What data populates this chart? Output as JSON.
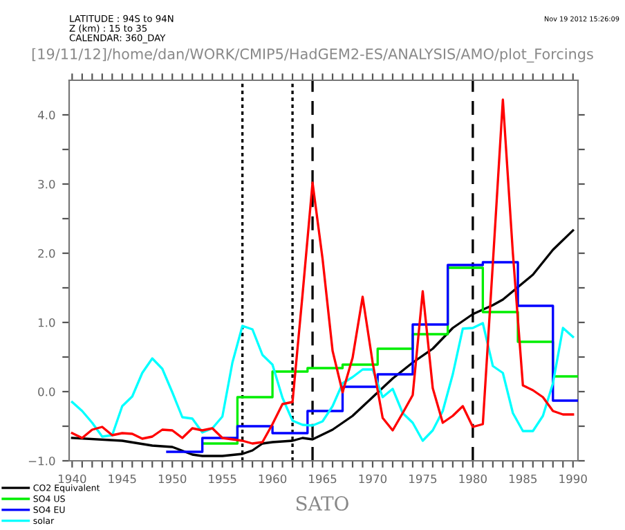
{
  "chart_data": {
    "type": "line",
    "title": "[19/11/12]/home/dan/WORK/CMIP5/HadGEM2-ES/ANALYSIS/AMO/plot_Forcings",
    "xlabel": "SATO",
    "annotations": [
      "LATITUDE : 94S to 94N",
      "Z (km) : 15 to 35",
      "CALENDAR: 360_DAY",
      "Nov 19 2012 15:26:09"
    ],
    "xlim": [
      1939.7,
      1990.5
    ],
    "ylim": [
      -1.0,
      4.5
    ],
    "xticks": [
      1940,
      {
        "value": 1941,
        "label": null
      },
      {
        "value": 1942,
        "label": null
      },
      {
        "value": 1943,
        "label": null
      },
      {
        "value": 1944,
        "label": null
      },
      1945,
      {
        "value": 1946,
        "label": null
      },
      {
        "value": 1947,
        "label": null
      },
      {
        "value": 1948,
        "label": null
      },
      {
        "value": 1949,
        "label": null
      },
      1950,
      {
        "value": 1951,
        "label": null
      },
      {
        "value": 1952,
        "label": null
      },
      {
        "value": 1953,
        "label": null
      },
      {
        "value": 1954,
        "label": null
      },
      1955,
      {
        "value": 1956,
        "label": null
      },
      {
        "value": 1957,
        "label": null
      },
      {
        "value": 1958,
        "label": null
      },
      {
        "value": 1959,
        "label": null
      },
      1960,
      {
        "value": 1961,
        "label": null
      },
      {
        "value": 1962,
        "label": null
      },
      {
        "value": 1963,
        "label": null
      },
      {
        "value": 1964,
        "label": null
      },
      1965,
      {
        "value": 1966,
        "label": null
      },
      {
        "value": 1967,
        "label": null
      },
      {
        "value": 1968,
        "label": null
      },
      {
        "value": 1969,
        "label": null
      },
      1970,
      {
        "value": 1971,
        "label": null
      },
      {
        "value": 1972,
        "label": null
      },
      {
        "value": 1973,
        "label": null
      },
      {
        "value": 1974,
        "label": null
      },
      1975,
      {
        "value": 1976,
        "label": null
      },
      {
        "value": 1977,
        "label": null
      },
      {
        "value": 1978,
        "label": null
      },
      {
        "value": 1979,
        "label": null
      },
      1980,
      {
        "value": 1981,
        "label": null
      },
      {
        "value": 1982,
        "label": null
      },
      {
        "value": 1983,
        "label": null
      },
      {
        "value": 1984,
        "label": null
      },
      1985,
      {
        "value": 1986,
        "label": null
      },
      {
        "value": 1987,
        "label": null
      },
      {
        "value": 1988,
        "label": null
      },
      {
        "value": 1989,
        "label": null
      },
      1990
    ],
    "yticks": [
      {
        "value": -1.0,
        "label": "−1.0"
      },
      {
        "value": -0.5,
        "label": null
      },
      {
        "value": 0.0,
        "label": "0.0"
      },
      {
        "value": 0.5,
        "label": null
      },
      {
        "value": 1.0,
        "label": "1.0"
      },
      {
        "value": 1.5,
        "label": null
      },
      {
        "value": 2.0,
        "label": "2.0"
      },
      {
        "value": 2.5,
        "label": null
      },
      {
        "value": 3.0,
        "label": "3.0"
      },
      {
        "value": 3.5,
        "label": null
      },
      {
        "value": 4.0,
        "label": "4.0"
      }
    ],
    "grid": false,
    "legend": "bottom left",
    "marker": "none",
    "line_style": "solid",
    "ref_lines": [
      {
        "axis": "x",
        "value": 1957,
        "color": "#000000",
        "line_style": "dotted"
      },
      {
        "axis": "x",
        "value": 1962,
        "color": "#000000",
        "line_style": "dotted"
      },
      {
        "axis": "x",
        "value": 1964,
        "color": "#000000",
        "line_style": "dashed"
      },
      {
        "axis": "x",
        "value": 1980,
        "color": "#000000",
        "line_style": "dashed"
      }
    ],
    "series": [
      {
        "name": "CO2 Equivalent",
        "color": "#000000",
        "x": [
          1940,
          1945,
          1948,
          1950,
          1952,
          1953,
          1955,
          1957,
          1958,
          1959,
          1960,
          1962,
          1963,
          1964,
          1966,
          1968,
          1970,
          1972,
          1974,
          1976,
          1978,
          1980,
          1982,
          1983,
          1984,
          1986,
          1988,
          1990
        ],
        "values": [
          -0.67,
          -0.71,
          -0.78,
          -0.8,
          -0.91,
          -0.93,
          -0.93,
          -0.9,
          -0.85,
          -0.75,
          -0.73,
          -0.71,
          -0.67,
          -0.69,
          -0.55,
          -0.35,
          -0.08,
          0.19,
          0.42,
          0.62,
          0.92,
          1.12,
          1.25,
          1.33,
          1.45,
          1.69,
          2.05,
          2.33
        ]
      },
      {
        "name": "SO4 US",
        "color": "#00ee00",
        "type": "step",
        "x": [
          1953,
          1956.5,
          1960,
          1963.5,
          1967,
          1970.5,
          1974,
          1977.5,
          1981,
          1984.5,
          1988,
          1990.5
        ],
        "values": [
          -0.75,
          -0.08,
          0.29,
          0.34,
          0.39,
          0.62,
          0.83,
          1.79,
          1.15,
          0.72,
          0.22,
          0.22
        ]
      },
      {
        "name": "SO4 EU",
        "color": "#0000ff",
        "type": "step",
        "x": [
          1949.5,
          1953,
          1956.5,
          1960,
          1963.5,
          1967,
          1970.5,
          1974,
          1977.5,
          1981,
          1984.5,
          1988,
          1990.5
        ],
        "values": [
          -0.87,
          -0.67,
          -0.5,
          -0.6,
          -0.28,
          0.07,
          0.25,
          0.97,
          1.83,
          1.87,
          1.24,
          -0.13,
          -0.13
        ]
      },
      {
        "name": "solar",
        "color": "#00ffff",
        "x": [
          1940,
          1941,
          1942,
          1943,
          1944,
          1945,
          1946,
          1947,
          1948,
          1949,
          1950,
          1951,
          1952,
          1953,
          1954,
          1955,
          1956,
          1957,
          1958,
          1959,
          1960,
          1961,
          1962,
          1963,
          1964,
          1965,
          1966,
          1967,
          1968,
          1969,
          1970,
          1971,
          1972,
          1973,
          1974,
          1975,
          1976,
          1977,
          1978,
          1979,
          1980,
          1981,
          1982,
          1983,
          1984,
          1985,
          1986,
          1987,
          1988,
          1989,
          1990
        ],
        "values": [
          -0.15,
          -0.28,
          -0.45,
          -0.65,
          -0.63,
          -0.21,
          -0.07,
          0.27,
          0.48,
          0.33,
          -0.01,
          -0.37,
          -0.39,
          -0.59,
          -0.53,
          -0.36,
          0.42,
          0.95,
          0.9,
          0.53,
          0.39,
          -0.09,
          -0.42,
          -0.48,
          -0.49,
          -0.43,
          -0.21,
          0.12,
          0.21,
          0.32,
          0.32,
          -0.08,
          0.04,
          -0.31,
          -0.45,
          -0.71,
          -0.56,
          -0.28,
          0.25,
          0.91,
          0.92,
          0.99,
          0.37,
          0.27,
          -0.31,
          -0.57,
          -0.57,
          -0.35,
          0.12,
          0.92,
          0.79
        ]
      },
      {
        "color": "#ff0000",
        "x": [
          1940,
          1941,
          1942,
          1943,
          1944,
          1945,
          1946,
          1947,
          1948,
          1949,
          1950,
          1951,
          1952,
          1953,
          1954,
          1955,
          1956,
          1957,
          1958,
          1959,
          1960,
          1961,
          1962,
          1963,
          1964,
          1965,
          1966,
          1967,
          1968,
          1969,
          1970,
          1971,
          1972,
          1973,
          1974,
          1975,
          1976,
          1977,
          1978,
          1979,
          1980,
          1981,
          1982,
          1983,
          1984,
          1985,
          1986,
          1987,
          1988,
          1989,
          1990
        ],
        "values": [
          -0.6,
          -0.67,
          -0.55,
          -0.51,
          -0.63,
          -0.6,
          -0.61,
          -0.68,
          -0.65,
          -0.55,
          -0.56,
          -0.67,
          -0.53,
          -0.56,
          -0.53,
          -0.67,
          -0.69,
          -0.71,
          -0.75,
          -0.73,
          -0.47,
          -0.18,
          -0.15,
          1.4,
          3.02,
          1.92,
          0.59,
          -0.01,
          0.49,
          1.37,
          0.42,
          -0.38,
          -0.56,
          -0.31,
          -0.05,
          1.45,
          0.05,
          -0.45,
          -0.35,
          -0.21,
          -0.51,
          -0.47,
          1.85,
          4.22,
          2.0,
          0.09,
          0.02,
          -0.08,
          -0.28,
          -0.33,
          -0.33
        ]
      }
    ]
  }
}
